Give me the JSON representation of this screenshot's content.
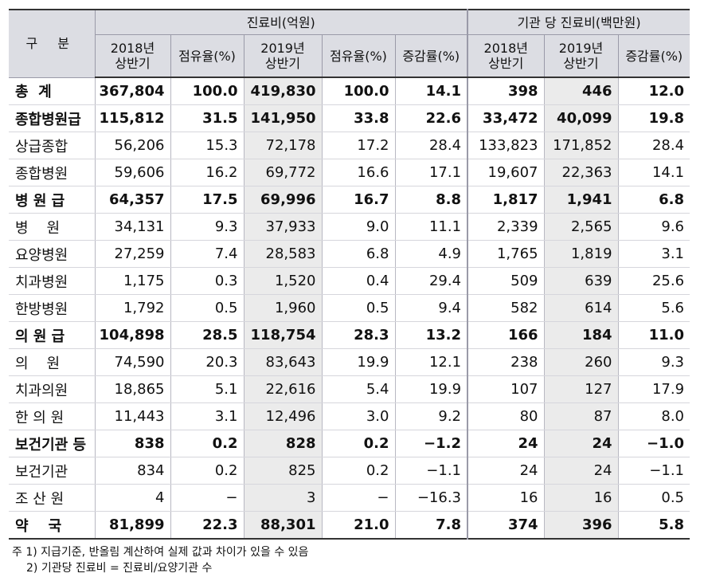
{
  "header": {
    "gubun": "구 분",
    "group_cost": "진료비(억원)",
    "group_per": "기관 당 진료비(백만원)",
    "cols": [
      "2018년\n상반기",
      "점유율(%)",
      "2019년\n상반기",
      "점유율(%)",
      "증감률(%)",
      "2018년\n상반기",
      "2019년\n상반기",
      "증감률(%)"
    ]
  },
  "rows": [
    {
      "label": "총  계",
      "bold": true,
      "values": [
        "367,804",
        "100.0",
        "419,830",
        "100.0",
        "14.1",
        "398",
        "446",
        "12.0"
      ]
    },
    {
      "label": "종합병원급",
      "bold": true,
      "values": [
        "115,812",
        "31.5",
        "141,950",
        "33.8",
        "22.6",
        "33,472",
        "40,099",
        "19.8"
      ]
    },
    {
      "label": "상급종합",
      "bold": false,
      "values": [
        "56,206",
        "15.3",
        "72,178",
        "17.2",
        "28.4",
        "133,823",
        "171,852",
        "28.4"
      ]
    },
    {
      "label": "종합병원",
      "bold": false,
      "values": [
        "59,606",
        "16.2",
        "69,772",
        "16.6",
        "17.1",
        "19,607",
        "22,363",
        "14.1"
      ]
    },
    {
      "label": "병 원 급",
      "bold": true,
      "values": [
        "64,357",
        "17.5",
        "69,996",
        "16.7",
        "8.8",
        "1,817",
        "1,941",
        "6.8"
      ]
    },
    {
      "label": "병    원",
      "bold": false,
      "values": [
        "34,131",
        "9.3",
        "37,933",
        "9.0",
        "11.1",
        "2,339",
        "2,565",
        "9.6"
      ]
    },
    {
      "label": "요양병원",
      "bold": false,
      "values": [
        "27,259",
        "7.4",
        "28,583",
        "6.8",
        "4.9",
        "1,765",
        "1,819",
        "3.1"
      ]
    },
    {
      "label": "치과병원",
      "bold": false,
      "values": [
        "1,175",
        "0.3",
        "1,520",
        "0.4",
        "29.4",
        "509",
        "639",
        "25.6"
      ]
    },
    {
      "label": "한방병원",
      "bold": false,
      "values": [
        "1,792",
        "0.5",
        "1,960",
        "0.5",
        "9.4",
        "582",
        "614",
        "5.6"
      ]
    },
    {
      "label": "의 원 급",
      "bold": true,
      "values": [
        "104,898",
        "28.5",
        "118,754",
        "28.3",
        "13.2",
        "166",
        "184",
        "11.0"
      ]
    },
    {
      "label": "의    원",
      "bold": false,
      "values": [
        "74,590",
        "20.3",
        "83,643",
        "19.9",
        "12.1",
        "238",
        "260",
        "9.3"
      ]
    },
    {
      "label": "치과의원",
      "bold": false,
      "values": [
        "18,865",
        "5.1",
        "22,616",
        "5.4",
        "19.9",
        "107",
        "127",
        "17.9"
      ]
    },
    {
      "label": "한 의 원",
      "bold": false,
      "values": [
        "11,443",
        "3.1",
        "12,496",
        "3.0",
        "9.2",
        "80",
        "87",
        "8.0"
      ]
    },
    {
      "label": "보건기관 등",
      "bold": true,
      "values": [
        "838",
        "0.2",
        "828",
        "0.2",
        "−1.2",
        "24",
        "24",
        "−1.0"
      ]
    },
    {
      "label": "보건기관",
      "bold": false,
      "values": [
        "834",
        "0.2",
        "825",
        "0.2",
        "−1.1",
        "24",
        "24",
        "−1.1"
      ]
    },
    {
      "label": "조 산 원",
      "bold": false,
      "values": [
        "4",
        "−",
        "3",
        "−",
        "−16.3",
        "16",
        "16",
        "0.5"
      ]
    },
    {
      "label": "약    국",
      "bold": true,
      "values": [
        "81,899",
        "22.3",
        "88,301",
        "21.0",
        "7.8",
        "374",
        "396",
        "5.8"
      ]
    }
  ],
  "notes": [
    "주 1) 지급기준, 반올림 계산하여 실제 값과 차이가 있을 수 있음",
    "2) 기관당 진료비 = 진료비/요양기관 수"
  ]
}
